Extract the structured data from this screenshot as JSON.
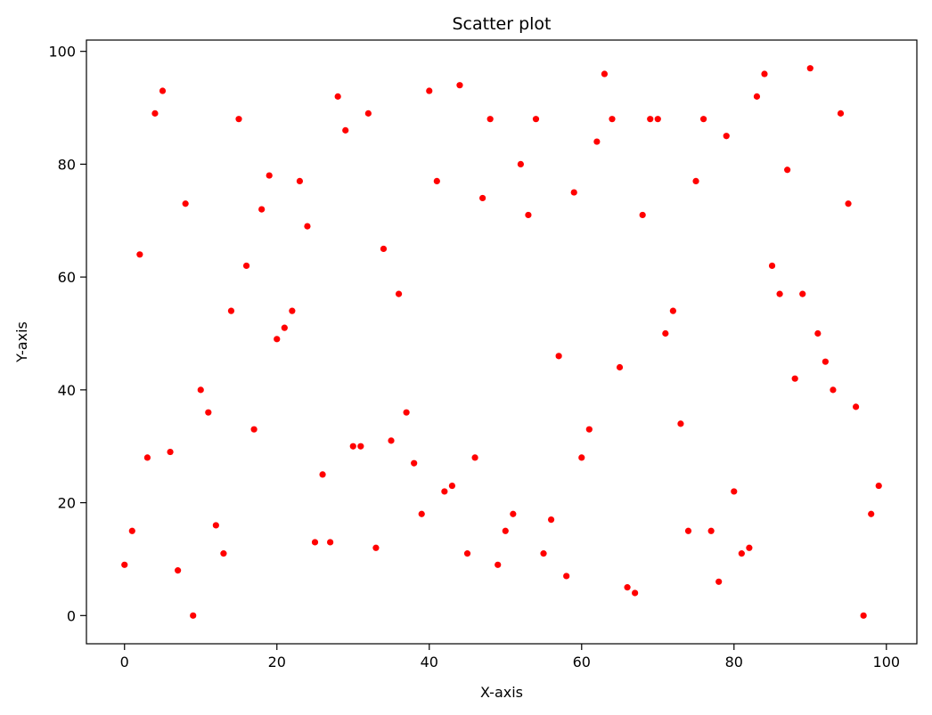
{
  "chart_data": {
    "type": "scatter",
    "title": "Scatter plot",
    "xlabel": "X-axis",
    "ylabel": "Y-axis",
    "xlim": [
      -5,
      104
    ],
    "ylim": [
      -5,
      102
    ],
    "x_ticks": [
      0,
      20,
      40,
      60,
      80,
      100
    ],
    "y_ticks": [
      0,
      20,
      40,
      60,
      80,
      100
    ],
    "grid": false,
    "marker_color": "#ff0000",
    "series": [
      {
        "x": [
          0,
          1,
          2,
          3,
          4,
          5,
          6,
          7,
          8,
          9,
          10,
          11,
          12,
          13,
          14,
          15,
          16,
          17,
          18,
          19,
          20,
          21,
          22,
          23,
          24,
          25,
          26,
          27,
          28,
          29,
          30,
          31,
          32,
          33,
          34,
          35,
          36,
          37,
          38,
          39,
          40,
          41,
          42,
          43,
          44,
          45,
          46,
          47,
          48,
          49,
          50,
          51,
          52,
          53,
          54,
          55,
          56,
          57,
          58,
          59,
          60,
          61,
          62,
          63,
          64,
          65,
          66,
          67,
          68,
          69,
          70,
          71,
          72,
          73,
          74,
          75,
          76,
          77,
          78,
          79,
          80,
          81,
          82,
          83,
          84,
          85,
          86,
          87,
          88,
          89,
          90,
          91,
          92,
          93,
          94,
          95,
          96,
          97,
          98,
          99
        ],
        "y": [
          9,
          15,
          64,
          28,
          89,
          93,
          29,
          8,
          73,
          0,
          40,
          36,
          16,
          11,
          54,
          88,
          62,
          33,
          72,
          78,
          49,
          51,
          54,
          77,
          69,
          13,
          25,
          13,
          92,
          86,
          30,
          30,
          89,
          12,
          65,
          31,
          57,
          36,
          27,
          18,
          93,
          77,
          22,
          23,
          94,
          11,
          28,
          74,
          88,
          9,
          15,
          18,
          80,
          71,
          88,
          11,
          17,
          46,
          7,
          75,
          28,
          33,
          84,
          96,
          88,
          44,
          5,
          4,
          71,
          88,
          88,
          50,
          54,
          34,
          15,
          77,
          88,
          15,
          6,
          85,
          22,
          11,
          12,
          92,
          96,
          62,
          57,
          79,
          42,
          57,
          97,
          50,
          45,
          40,
          89,
          73,
          37,
          0,
          18,
          23
        ]
      }
    ]
  }
}
